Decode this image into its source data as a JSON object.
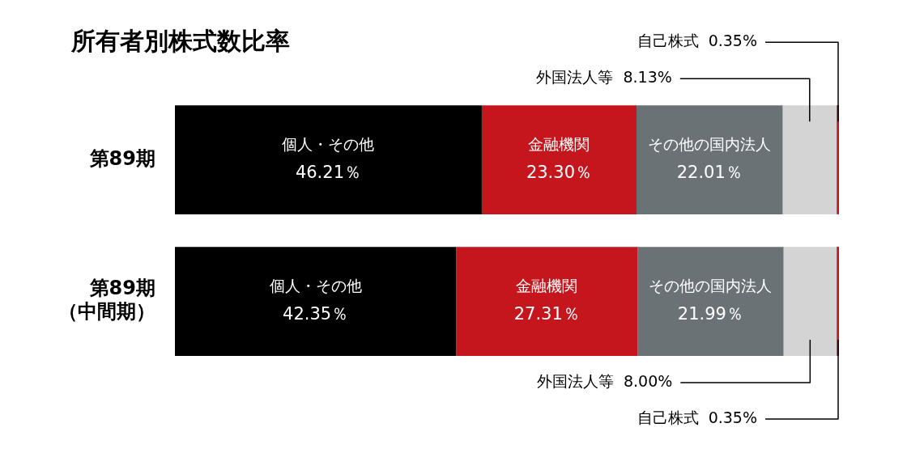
{
  "chart_data": {
    "type": "bar",
    "title": "所有者別株式数比率",
    "orientation": "horizontal",
    "stacked": true,
    "categories": [
      "第89期",
      "第89期（中間期）"
    ],
    "xlim": [
      0,
      100
    ],
    "tick_labels": "y",
    "grid": false,
    "legend": false,
    "series": [
      {
        "name": "個人・その他",
        "color": "#000000",
        "values": [
          46.21,
          42.35
        ],
        "value_labels": [
          "46.21％",
          "42.35％"
        ]
      },
      {
        "name": "金融機関",
        "color": "#c4161c",
        "values": [
          23.3,
          27.31
        ],
        "value_labels": [
          "23.30％",
          "27.31％"
        ]
      },
      {
        "name": "その他の国内法人",
        "color": "#6b7276",
        "values": [
          22.01,
          21.99
        ],
        "value_labels": [
          "22.01％",
          "21.99％"
        ]
      },
      {
        "name": "外国法人等",
        "color": "#d4d4d4",
        "values": [
          8.13,
          8.0
        ],
        "value_labels": [
          "8.13%",
          "8.00%"
        ]
      },
      {
        "name": "自己株式",
        "color": "#c4161c",
        "values": [
          0.35,
          0.35
        ],
        "value_labels": [
          "0.35%",
          "0.35%"
        ]
      }
    ]
  }
}
